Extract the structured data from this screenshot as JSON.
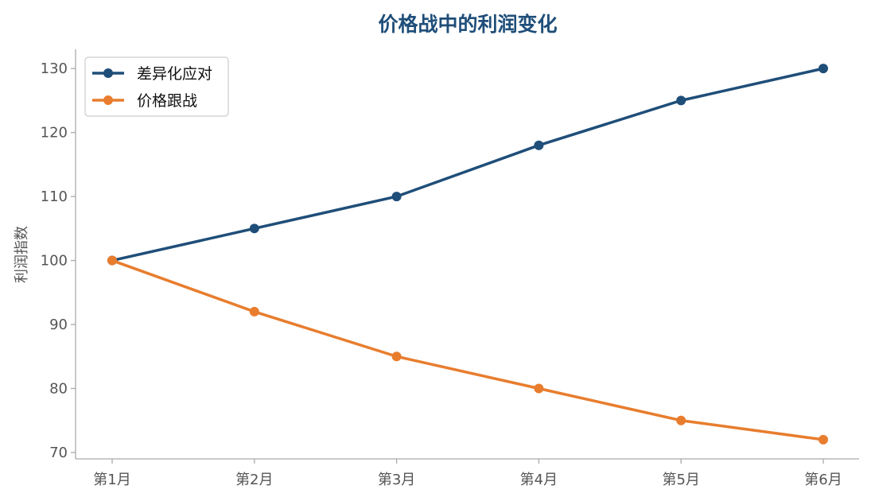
{
  "chart_data": {
    "type": "line",
    "title": "价格战中的利润变化",
    "xlabel": "",
    "ylabel": "利润指数",
    "categories": [
      "第1月",
      "第2月",
      "第3月",
      "第4月",
      "第5月",
      "第6月"
    ],
    "ylim": [
      69,
      133
    ],
    "yticks": [
      70,
      80,
      90,
      100,
      110,
      120,
      130
    ],
    "grid": false,
    "legend_position": "top-left",
    "series": [
      {
        "name": "差异化应对",
        "color": "#1f4e79",
        "values": [
          100,
          105,
          110,
          118,
          125,
          130
        ]
      },
      {
        "name": "价格跟战",
        "color": "#e87d2e",
        "values": [
          100,
          92,
          85,
          80,
          75,
          72
        ]
      }
    ],
    "title_color": "#1f4e79",
    "axis_color": "#aaaaaa"
  }
}
